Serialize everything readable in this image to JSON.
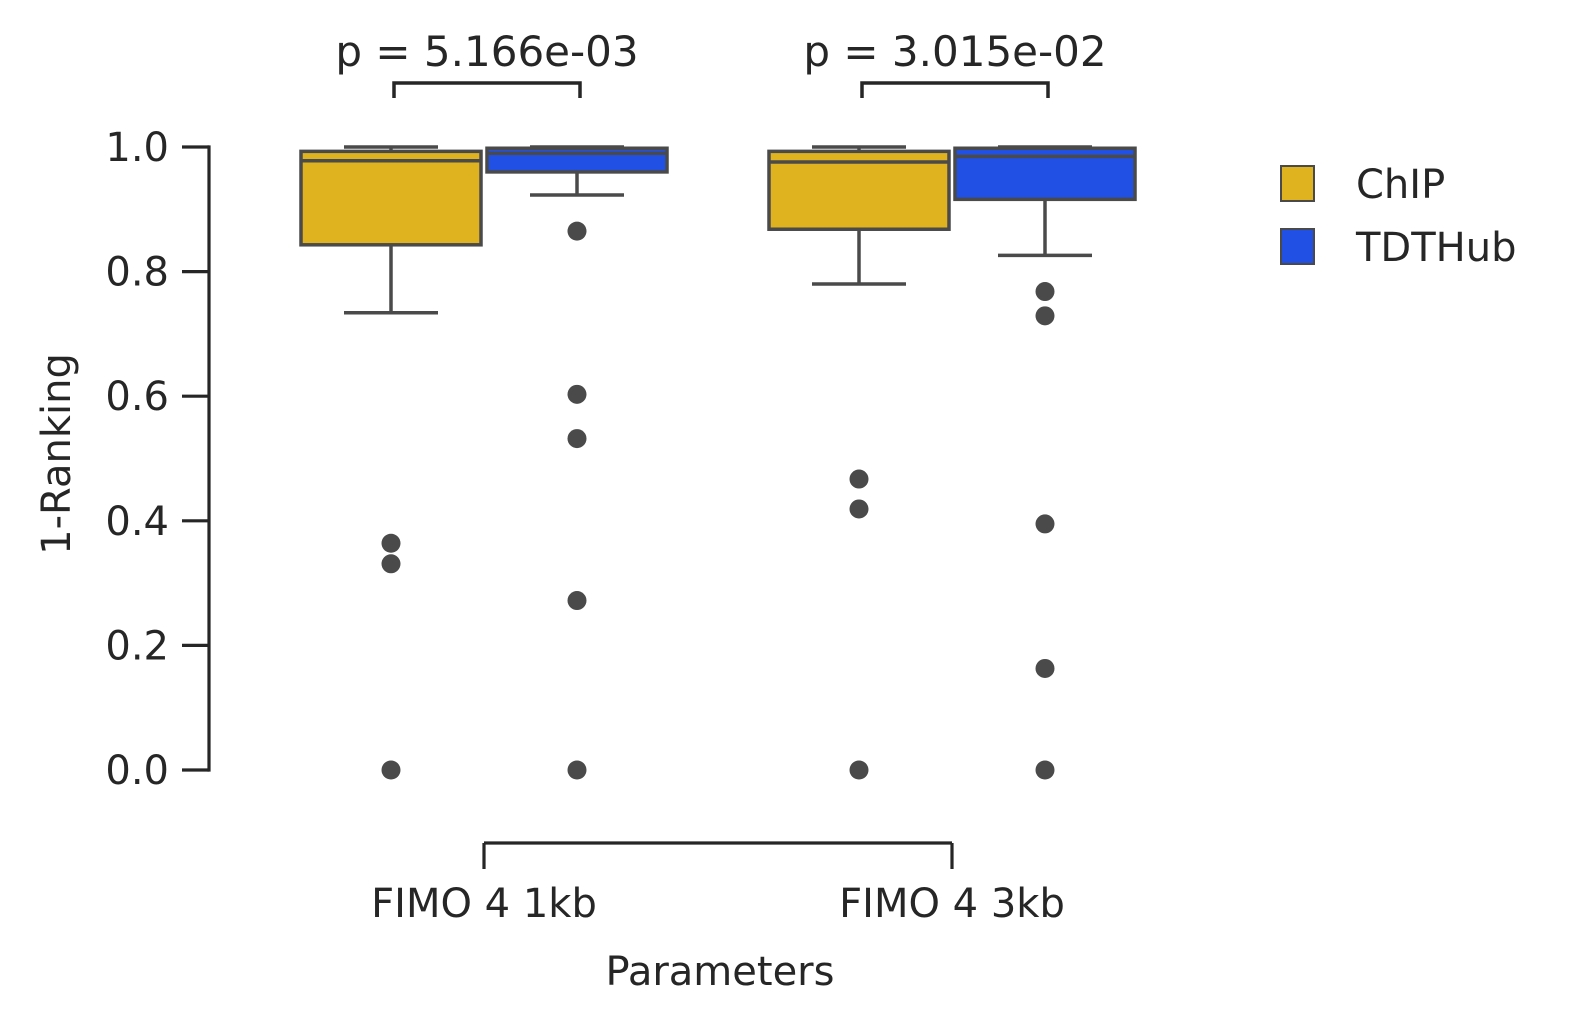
{
  "chart_data": {
    "type": "box",
    "title": "",
    "xlabel": "Parameters",
    "ylabel": "1-Ranking",
    "ylim": [
      0.0,
      1.0
    ],
    "yticks": [
      "0.0",
      "0.2",
      "0.4",
      "0.6",
      "0.8",
      "1.0"
    ],
    "categories": [
      "FIMO 4 1kb",
      "FIMO 4 3kb"
    ],
    "series": [
      {
        "name": "ChIP",
        "color": "#DEB31F",
        "boxes": [
          {
            "whisker_low": 0.734,
            "q1": 0.843,
            "median": 0.978,
            "q3": 0.993,
            "whisker_high": 1.0,
            "outliers": [
              0.364,
              0.331,
              0.0
            ]
          },
          {
            "whisker_low": 0.78,
            "q1": 0.868,
            "median": 0.976,
            "q3": 0.993,
            "whisker_high": 1.0,
            "outliers": [
              0.467,
              0.419,
              0.0
            ]
          }
        ]
      },
      {
        "name": "TDTHub",
        "color": "#2150E4",
        "boxes": [
          {
            "whisker_low": 0.923,
            "q1": 0.96,
            "median": 0.99,
            "q3": 0.998,
            "whisker_high": 1.0,
            "outliers": [
              0.865,
              0.603,
              0.532,
              0.272,
              0.0
            ]
          },
          {
            "whisker_low": 0.826,
            "q1": 0.916,
            "median": 0.985,
            "q3": 0.998,
            "whisker_high": 1.0,
            "outliers": [
              0.768,
              0.729,
              0.395,
              0.163,
              0.0
            ]
          }
        ]
      }
    ],
    "annotations": [
      {
        "text": "p = 5.166e-03",
        "category": "FIMO 4 1kb"
      },
      {
        "text": "p = 3.015e-02",
        "category": "FIMO 4 3kb"
      }
    ],
    "legend": {
      "placement": "upper-right outside",
      "entries": [
        "ChIP",
        "TDTHub"
      ]
    },
    "grid": false
  },
  "colors": {
    "ink": "#262626",
    "box_edge": "#4A4A4A"
  }
}
